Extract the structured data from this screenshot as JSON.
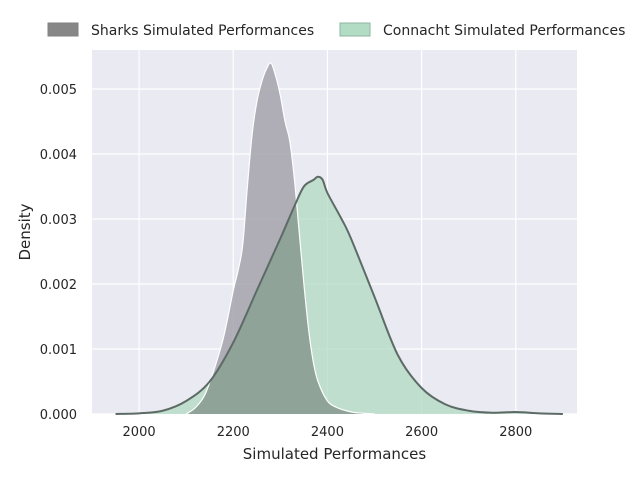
{
  "chart_data": {
    "type": "area",
    "title": "",
    "xlabel": "Simulated Performances",
    "ylabel": "Density",
    "xlim": [
      1900,
      2930
    ],
    "ylim": [
      0,
      0.0056
    ],
    "x_ticks": [
      2000,
      2200,
      2400,
      2600,
      2800
    ],
    "y_ticks": [
      0.0,
      0.001,
      0.002,
      0.003,
      0.004,
      0.005
    ],
    "x_tick_labels": [
      "2000",
      "2200",
      "2400",
      "2600",
      "2800"
    ],
    "y_tick_labels": [
      "0.000",
      "0.001",
      "0.002",
      "0.003",
      "0.004",
      "0.005"
    ],
    "grid": true,
    "legend_position": "top",
    "legend_entries": [
      "Sharks Simulated Performances",
      "Connacht Simulated Performances"
    ],
    "colors": {
      "background": "#eaeaf2",
      "grid": "#ffffff",
      "sharks_fill": "#a09ea6",
      "sharks_edge": "#ffffff",
      "connacht_fill": "#b2d9c2",
      "connacht_edge": "#5d6b66",
      "overlap_fill": "#8fa398",
      "legend_sharks": "#878787",
      "legend_connacht": "#b3dcc4"
    },
    "series": [
      {
        "name": "Sharks Simulated Performances",
        "x": [
          2100,
          2120,
          2140,
          2160,
          2180,
          2200,
          2210,
          2220,
          2230,
          2240,
          2250,
          2260,
          2270,
          2280,
          2290,
          2300,
          2310,
          2320,
          2330,
          2340,
          2350,
          2360,
          2370,
          2380,
          2400,
          2420,
          2440,
          2460,
          2480,
          2500
        ],
        "y": [
          0.0,
          0.0001,
          0.0003,
          0.0007,
          0.0012,
          0.0019,
          0.0022,
          0.0026,
          0.0035,
          0.0043,
          0.0048,
          0.0051,
          0.0053,
          0.0054,
          0.0052,
          0.0049,
          0.0045,
          0.0042,
          0.0036,
          0.0028,
          0.002,
          0.0013,
          0.0008,
          0.0005,
          0.0002,
          0.0001,
          5e-05,
          2e-05,
          1e-05,
          0.0
        ]
      },
      {
        "name": "Connacht Simulated Performances",
        "x": [
          1950,
          2000,
          2050,
          2100,
          2150,
          2200,
          2250,
          2300,
          2330,
          2350,
          2370,
          2380,
          2390,
          2400,
          2430,
          2450,
          2500,
          2550,
          2600,
          2650,
          2700,
          2750,
          2800,
          2850,
          2900
        ],
        "y": [
          0.0,
          1e-05,
          5e-05,
          0.0002,
          0.0005,
          0.0011,
          0.0019,
          0.0027,
          0.0032,
          0.0035,
          0.0036,
          0.00365,
          0.0036,
          0.0034,
          0.003,
          0.0027,
          0.0018,
          0.0009,
          0.0004,
          0.00015,
          5e-05,
          2e-05,
          3e-05,
          1e-05,
          0.0
        ]
      }
    ]
  }
}
